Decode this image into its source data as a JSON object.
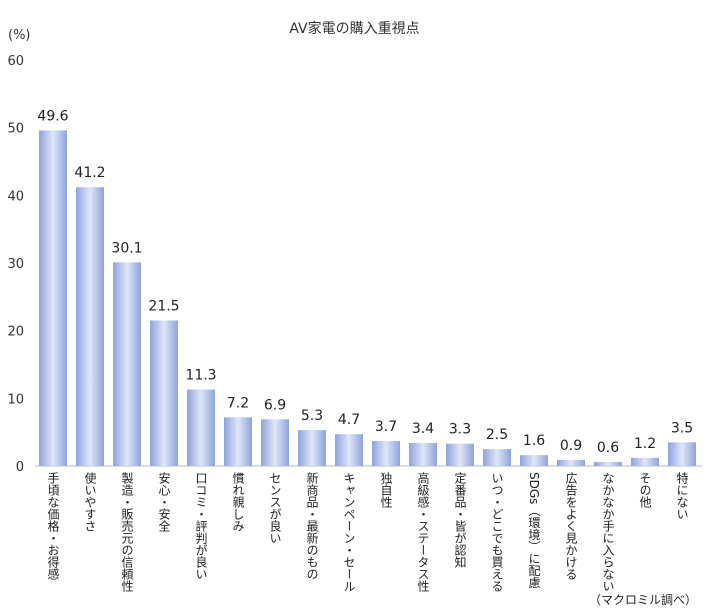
{
  "chart_data": {
    "type": "bar",
    "title": "AV家電の購入重視点",
    "ylabel": "(%)",
    "xlabel": "",
    "source": "（マクロミル調べ）",
    "ylim": [
      0,
      60
    ],
    "yticks": [
      0,
      10,
      20,
      30,
      40,
      50,
      60
    ],
    "grid": false,
    "categories": [
      "手頃な価格・お得感",
      "使いやすさ",
      "製造・販売元の信頼性",
      "安心・安全",
      "口コミ・評判が良い",
      "慣れ親しみ",
      "センスが良い",
      "新商品・最新のもの",
      "キャンペーン・セール",
      "独自性",
      "高級感・ステータス性",
      "定番品・皆が認知",
      "いつ・どこでも買える",
      "SDGs（環境）に配慮",
      "広告をよく見かける",
      "なかなか手に入らない",
      "その他",
      "特にない"
    ],
    "values": [
      49.6,
      41.2,
      30.1,
      21.5,
      11.3,
      7.2,
      6.9,
      5.3,
      4.7,
      3.7,
      3.4,
      3.3,
      2.5,
      1.6,
      0.9,
      0.6,
      1.2,
      3.5
    ],
    "bar_color": "#a9b9e6"
  }
}
